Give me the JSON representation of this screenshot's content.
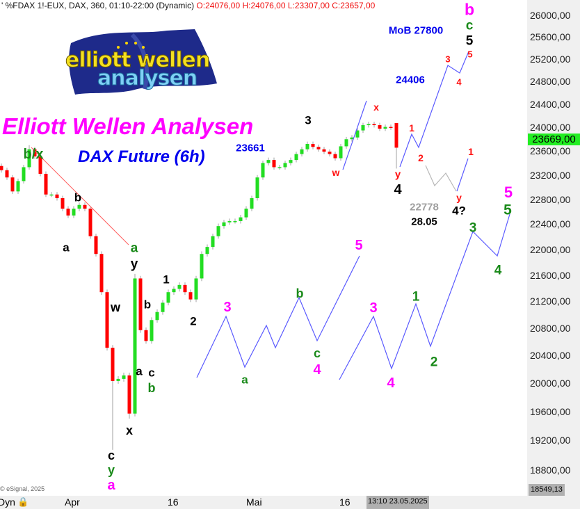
{
  "header": {
    "symbol_info": "' %FDAX 1!-EUX, DAX, 360, 01:10-22:00 (Dynamic)",
    "ohlc": "O:24076,00 H:24076,00 L:23307,00 C:23657,00"
  },
  "logo": {
    "text_line1": "elliott wellen",
    "text_line2": "analysen"
  },
  "title": "Elliott Wellen Analysen",
  "subtitle": "DAX Future (6h)",
  "copyright": "© eSignal, 2025",
  "price_tag": "23669,00",
  "low_tag": "18549,13",
  "x_axis": {
    "mode": "Dyn",
    "labels": [
      "Apr",
      "16",
      "Mai",
      "16"
    ],
    "cursor_date": "13:10 23.05.2025"
  },
  "colors": {
    "up": "#22dd22",
    "down": "#ff0000",
    "wick": "#a0a0a0",
    "projection": "#5a5aff",
    "alt_projection": "#b8b8b8",
    "trendline": "#ff6060",
    "title": "#ff00ff",
    "subtitle": "#0000ee"
  },
  "labels": {
    "bx": "b/x",
    "b1": "b",
    "a1": "a",
    "a_green": "a",
    "y1": "y",
    "w1": "w",
    "one1": "1",
    "b2": "b",
    "two1": "2",
    "a2": "a",
    "c1": "c",
    "b_green": "b",
    "x1": "x",
    "c_low": "c",
    "y_low": "y",
    "a_low": "a",
    "three_black": "3",
    "level_23661": "23661",
    "w_red": "w",
    "x_red": "x",
    "y_red": "y",
    "four_black": "4",
    "r1": "1",
    "r2": "2",
    "level_24406": "24406",
    "mob": "MoB 27800",
    "r3": "3",
    "r4": "4",
    "r5": "5",
    "five_black": "5",
    "c_green_top": "c",
    "b_magenta_top": "b",
    "r1b": "1",
    "y_red2": "y",
    "level_22778": "22778",
    "date_2805": "28.05",
    "four_q": "4?",
    "m3a": "3",
    "ga": "a",
    "gb": "b",
    "gc": "c",
    "m4a": "4",
    "m5a": "5",
    "m3b": "3",
    "m4b": "4",
    "g1": "1",
    "g2": "2",
    "g3": "3",
    "g4": "4",
    "m5b": "5",
    "g5": "5"
  },
  "chart_data": {
    "type": "candlestick",
    "title": "%FDAX 1!-EUX, DAX, 360",
    "y_scale": "log",
    "ylim": [
      18549.13,
      26200
    ],
    "y_ticks": [
      "26000,00",
      "25600,00",
      "25200,00",
      "24800,00",
      "24400,00",
      "24000,00",
      "23600,00",
      "23200,00",
      "22800,00",
      "22400,00",
      "22000,00",
      "21600,00",
      "21200,00",
      "20800,00",
      "20400,00",
      "20000,00",
      "19600,00",
      "19200,00",
      "18800,00"
    ],
    "y_tick_values": [
      26000,
      25600,
      25200,
      24800,
      24400,
      24000,
      23600,
      23200,
      22800,
      22400,
      22000,
      21600,
      21200,
      20800,
      20400,
      20000,
      19600,
      19200,
      18800
    ],
    "last_price": 23669,
    "grid": false,
    "candles_ohlc": [
      [
        23350,
        23390,
        23240,
        23280
      ],
      [
        23280,
        23320,
        23120,
        23160
      ],
      [
        23160,
        23200,
        22890,
        22930
      ],
      [
        22930,
        23140,
        22890,
        23100
      ],
      [
        23100,
        23370,
        23060,
        23330
      ],
      [
        23330,
        23700,
        23290,
        23630
      ],
      [
        23630,
        23670,
        23470,
        23510
      ],
      [
        23510,
        23550,
        23180,
        23220
      ],
      [
        23220,
        23260,
        22840,
        22880
      ],
      [
        22880,
        22920,
        22840,
        22880
      ],
      [
        22880,
        22920,
        22780,
        22820
      ],
      [
        22820,
        22860,
        22610,
        22650
      ],
      [
        22650,
        22690,
        22500,
        22540
      ],
      [
        22540,
        22690,
        22500,
        22650
      ],
      [
        22650,
        22750,
        22610,
        22710
      ],
      [
        22710,
        22750,
        22610,
        22650
      ],
      [
        22650,
        22690,
        22170,
        22210
      ],
      [
        22210,
        22250,
        21890,
        21930
      ],
      [
        21930,
        21970,
        21300,
        21340
      ],
      [
        21340,
        21380,
        20470,
        20510
      ],
      [
        20510,
        20550,
        19070,
        20030
      ],
      [
        20030,
        20100,
        19990,
        20060
      ],
      [
        20060,
        20150,
        20020,
        20110
      ],
      [
        20110,
        20150,
        19500,
        19570
      ],
      [
        19570,
        21620,
        19530,
        21550
      ],
      [
        21550,
        21590,
        20730,
        20770
      ],
      [
        20770,
        20810,
        20570,
        20610
      ],
      [
        20610,
        20960,
        20570,
        20920
      ],
      [
        20920,
        21080,
        20880,
        21040
      ],
      [
        21040,
        21220,
        21000,
        21180
      ],
      [
        21180,
        21380,
        21140,
        21340
      ],
      [
        21340,
        21430,
        21300,
        21390
      ],
      [
        21390,
        21490,
        21350,
        21450
      ],
      [
        21450,
        21490,
        21300,
        21340
      ],
      [
        21340,
        21380,
        21190,
        21230
      ],
      [
        21230,
        21590,
        21190,
        21550
      ],
      [
        21550,
        21970,
        21510,
        21930
      ],
      [
        21930,
        22080,
        21890,
        22040
      ],
      [
        22040,
        22250,
        22000,
        22210
      ],
      [
        22210,
        22410,
        22170,
        22370
      ],
      [
        22370,
        22470,
        22330,
        22430
      ],
      [
        22430,
        22490,
        22390,
        22450
      ],
      [
        22450,
        22490,
        22410,
        22450
      ],
      [
        22450,
        22550,
        22410,
        22510
      ],
      [
        22510,
        22690,
        22470,
        22650
      ],
      [
        22650,
        22860,
        22610,
        22820
      ],
      [
        22820,
        23200,
        22780,
        23160
      ],
      [
        23160,
        23440,
        23120,
        23400
      ],
      [
        23400,
        23490,
        23360,
        23450
      ],
      [
        23450,
        23490,
        23290,
        23330
      ],
      [
        23330,
        23370,
        23290,
        23330
      ],
      [
        23330,
        23440,
        23290,
        23400
      ],
      [
        23400,
        23490,
        23360,
        23450
      ],
      [
        23450,
        23590,
        23410,
        23550
      ],
      [
        23550,
        23670,
        23510,
        23630
      ],
      [
        23630,
        23760,
        23590,
        23720
      ],
      [
        23720,
        23760,
        23630,
        23670
      ],
      [
        23670,
        23710,
        23590,
        23630
      ],
      [
        23630,
        23670,
        23550,
        23590
      ],
      [
        23590,
        23630,
        23510,
        23550
      ],
      [
        23550,
        23590,
        23440,
        23480
      ],
      [
        23480,
        23720,
        23440,
        23680
      ],
      [
        23680,
        23840,
        23640,
        23800
      ],
      [
        23800,
        23870,
        23760,
        23830
      ],
      [
        23830,
        23990,
        23790,
        23950
      ],
      [
        23950,
        24080,
        23910,
        24040
      ],
      [
        24040,
        24100,
        24000,
        24060
      ],
      [
        24060,
        24100,
        24000,
        24040
      ],
      [
        24040,
        24080,
        23940,
        23980
      ],
      [
        23980,
        24050,
        23940,
        24010
      ],
      [
        24010,
        24050,
        23960,
        24000
      ],
      [
        24076,
        24076,
        23307,
        23657
      ]
    ]
  }
}
